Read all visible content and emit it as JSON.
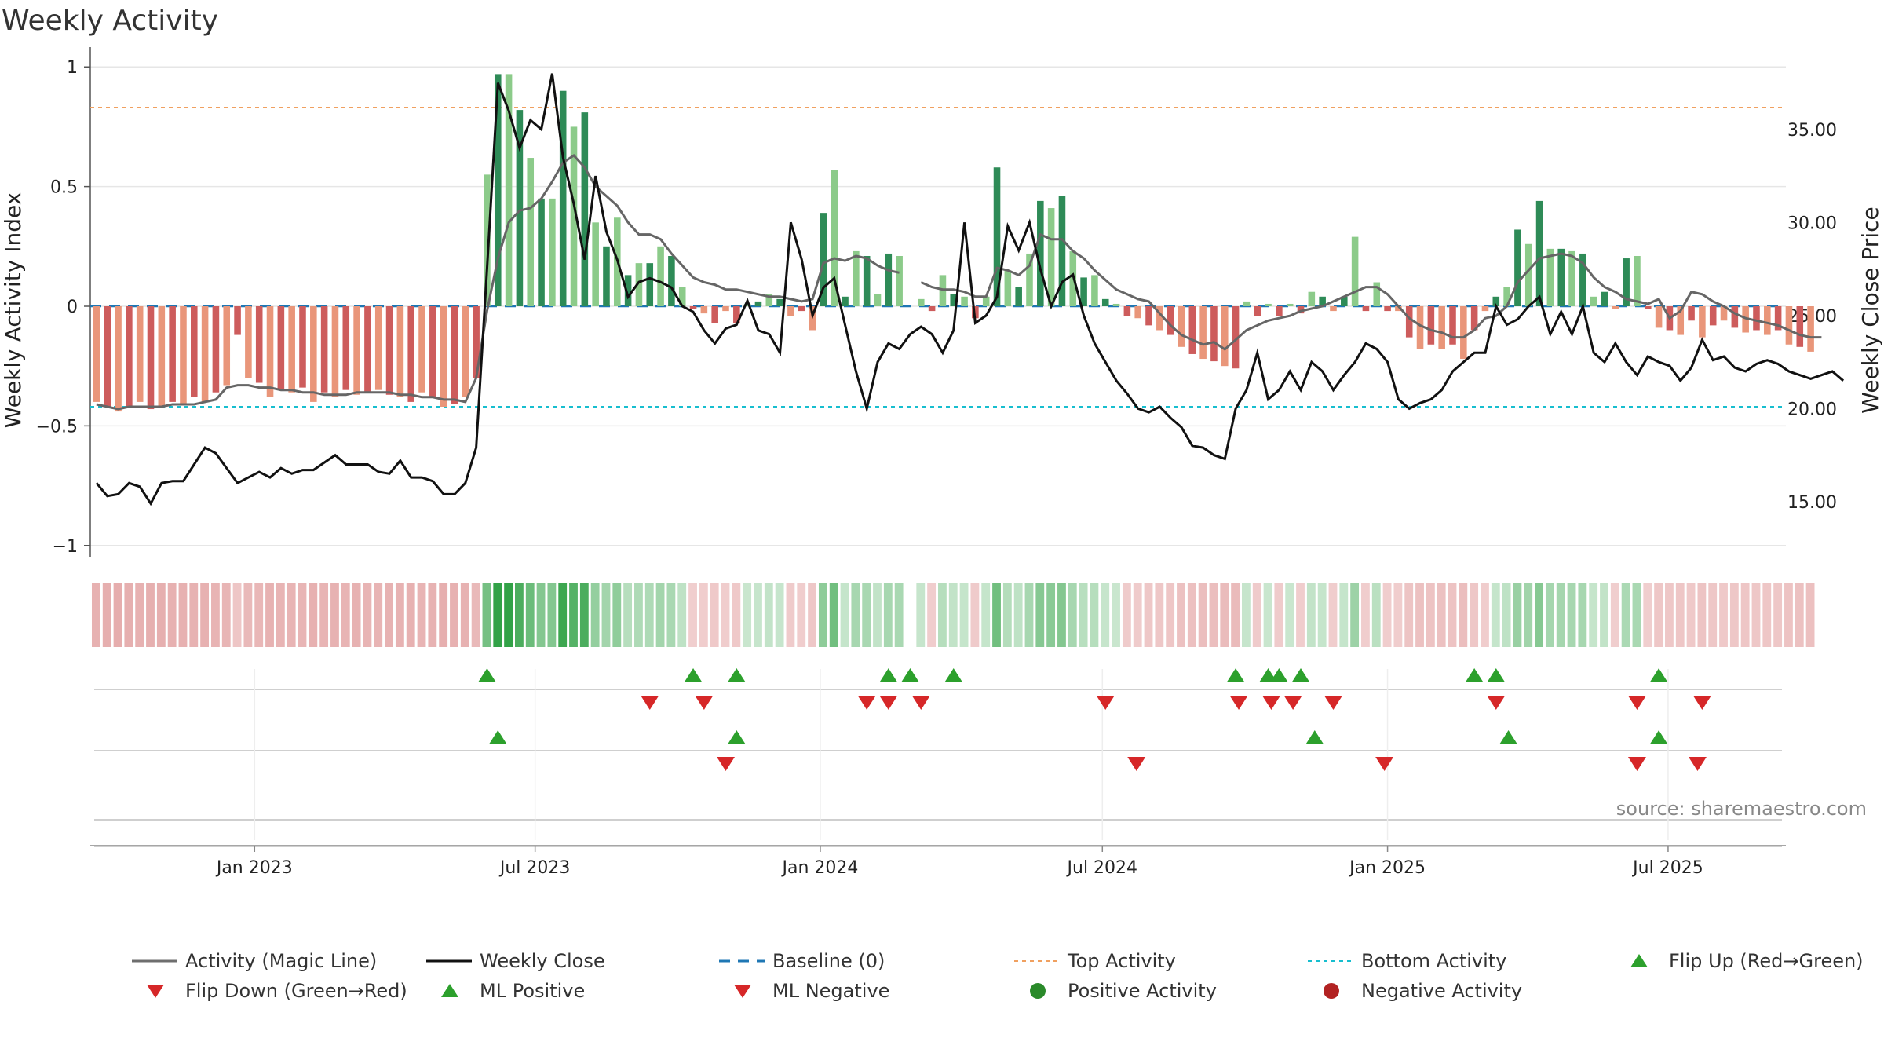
{
  "chart_data": {
    "type": "bar",
    "title": "Weekly Activity",
    "ylabel": "Weekly Activity Index",
    "y2label": "Weekly Close Price",
    "ylim": [
      -1.05,
      1.05
    ],
    "y2lim": [
      12.0,
      39.0
    ],
    "yticks": [
      "1",
      "0.5",
      "0",
      "−0.5",
      "−1"
    ],
    "yticks_values": [
      1,
      0.5,
      0,
      -0.5,
      -1
    ],
    "y2ticks": [
      "35.00",
      "30.00",
      "25.00",
      "20.00",
      "15.00"
    ],
    "y2ticks_values": [
      35,
      30,
      25,
      20,
      15
    ],
    "xlim": [
      "2022-09-17",
      "2025-09-15"
    ],
    "xticks": [
      "Jan 2023",
      "Jul 2023",
      "Jan 2024",
      "Jul 2024",
      "Jan 2025",
      "Jul 2025"
    ],
    "xticks_dates": [
      "2023-01-01",
      "2023-07-01",
      "2024-01-01",
      "2024-07-01",
      "2025-01-01",
      "2025-07-01"
    ],
    "week_start": "2022-09-21",
    "colors": {
      "pos_strong": "#2e8b57",
      "pos_weak": "#8ccb8a",
      "neg_strong": "#cd5c5c",
      "neg_weak": "#e9967a",
      "magic_line": "#666666",
      "close_line": "#111111",
      "baseline": "#1f77b4",
      "top_activity": "#f0a060",
      "bottom_activity": "#17becf",
      "flip_up": "#2ca02c",
      "flip_down": "#d62728"
    },
    "top_activity": 0.83,
    "bottom_activity": -0.42,
    "activity": [
      -0.4,
      -0.42,
      -0.44,
      -0.42,
      -0.4,
      -0.43,
      -0.42,
      -0.4,
      -0.41,
      -0.38,
      -0.4,
      -0.36,
      -0.33,
      -0.12,
      -0.3,
      -0.32,
      -0.38,
      -0.35,
      -0.36,
      -0.34,
      -0.4,
      -0.36,
      -0.38,
      -0.35,
      -0.37,
      -0.36,
      -0.35,
      -0.37,
      -0.38,
      -0.4,
      -0.36,
      -0.38,
      -0.42,
      -0.41,
      -0.38,
      -0.3,
      0.55,
      0.97,
      0.97,
      0.82,
      0.62,
      0.45,
      0.45,
      0.9,
      0.75,
      0.81,
      0.35,
      0.25,
      0.37,
      0.13,
      0.18,
      0.18,
      0.25,
      0.21,
      0.08,
      -0.01,
      -0.03,
      -0.07,
      -0.02,
      -0.07,
      0.01,
      0.02,
      0.05,
      0.03,
      -0.04,
      -0.02,
      -0.1,
      0.39,
      0.57,
      0.04,
      0.23,
      0.21,
      0.05,
      0.22,
      0.21,
      null,
      0.03,
      -0.02,
      0.13,
      0.05,
      0.04,
      -0.05,
      0.04,
      0.58,
      0.15,
      0.08,
      0.22,
      0.44,
      0.41,
      0.46,
      0.23,
      0.12,
      0.13,
      0.03,
      0.01,
      -0.04,
      -0.05,
      -0.08,
      -0.1,
      -0.12,
      -0.17,
      -0.2,
      -0.22,
      -0.23,
      -0.25,
      -0.26,
      0.02,
      -0.04,
      0.01,
      -0.04,
      0.01,
      -0.03,
      0.06,
      0.04,
      -0.02,
      0.04,
      0.29,
      -0.02,
      0.1,
      -0.02,
      -0.02,
      -0.13,
      -0.18,
      -0.16,
      -0.18,
      -0.16,
      -0.22,
      -0.1,
      -0.02,
      0.04,
      0.08,
      0.32,
      0.26,
      0.44,
      0.24,
      0.24,
      0.23,
      0.22,
      0.04,
      0.06,
      -0.01,
      0.2,
      0.21,
      -0.01,
      -0.09,
      -0.1,
      -0.12,
      -0.06,
      -0.13,
      -0.08,
      -0.06,
      -0.09,
      -0.11,
      -0.1,
      -0.12,
      -0.1,
      -0.16,
      -0.17,
      -0.19
    ],
    "magic_line": [
      -0.41,
      -0.42,
      -0.43,
      -0.42,
      -0.42,
      -0.42,
      -0.42,
      -0.41,
      -0.41,
      -0.41,
      -0.4,
      -0.39,
      -0.34,
      -0.33,
      -0.33,
      -0.34,
      -0.34,
      -0.35,
      -0.35,
      -0.36,
      -0.36,
      -0.37,
      -0.37,
      -0.37,
      -0.36,
      -0.36,
      -0.36,
      -0.36,
      -0.37,
      -0.37,
      -0.38,
      -0.38,
      -0.39,
      -0.39,
      -0.4,
      -0.3,
      -0.02,
      0.2,
      0.35,
      0.4,
      0.41,
      0.45,
      0.52,
      0.6,
      0.63,
      0.58,
      0.5,
      0.46,
      0.42,
      0.35,
      0.3,
      0.3,
      0.28,
      0.22,
      0.17,
      0.12,
      0.1,
      0.09,
      0.07,
      0.07,
      0.06,
      0.05,
      0.04,
      0.04,
      0.03,
      0.02,
      0.03,
      0.18,
      0.2,
      0.19,
      0.21,
      0.2,
      0.17,
      0.15,
      0.14,
      null,
      0.1,
      0.08,
      0.07,
      0.07,
      0.06,
      0.04,
      0.04,
      0.16,
      0.15,
      0.13,
      0.17,
      0.3,
      0.28,
      0.28,
      0.23,
      0.2,
      0.15,
      0.11,
      0.07,
      0.05,
      0.03,
      0.02,
      -0.03,
      -0.08,
      -0.12,
      -0.14,
      -0.16,
      -0.15,
      -0.18,
      -0.14,
      -0.1,
      -0.08,
      -0.06,
      -0.05,
      -0.04,
      -0.02,
      -0.01,
      0.0,
      0.02,
      0.04,
      0.06,
      0.08,
      0.08,
      0.05,
      0.0,
      -0.05,
      -0.08,
      -0.1,
      -0.11,
      -0.13,
      -0.13,
      -0.1,
      -0.05,
      -0.04,
      0.0,
      0.1,
      0.15,
      0.2,
      0.21,
      0.22,
      0.21,
      0.18,
      0.12,
      0.08,
      0.06,
      0.03,
      0.02,
      0.01,
      0.03,
      -0.05,
      -0.02,
      0.06,
      0.05,
      0.02,
      0.0,
      -0.03,
      -0.05,
      -0.06,
      -0.07,
      -0.08,
      -0.1,
      -0.12,
      -0.13,
      -0.13
    ],
    "close": [
      16.0,
      15.3,
      15.4,
      16.0,
      15.8,
      14.9,
      16.0,
      16.1,
      16.1,
      17.0,
      17.9,
      17.6,
      16.8,
      16.0,
      16.3,
      16.6,
      16.3,
      16.8,
      16.5,
      16.7,
      16.7,
      17.1,
      17.5,
      17.0,
      17.0,
      17.0,
      16.6,
      16.5,
      17.2,
      16.3,
      16.3,
      16.1,
      15.4,
      15.4,
      16.0,
      17.9,
      27.5,
      37.5,
      36.0,
      34.0,
      35.5,
      35.0,
      38.0,
      33.5,
      31.0,
      28.0,
      32.5,
      29.5,
      28.0,
      26.0,
      26.8,
      27.0,
      26.8,
      26.5,
      25.5,
      25.2,
      24.2,
      23.5,
      24.3,
      24.5,
      25.8,
      24.2,
      24.0,
      23.0,
      30.0,
      28.0,
      25.0,
      26.5,
      27.0,
      24.5,
      22.0,
      20.0,
      22.5,
      23.5,
      23.2,
      24.0,
      24.4,
      24.0,
      23.0,
      24.2,
      30.0,
      24.6,
      25.0,
      26.0,
      29.8,
      28.5,
      30.0,
      27.5,
      25.5,
      26.8,
      27.2,
      25.0,
      23.5,
      22.5,
      21.5,
      20.8,
      20.0,
      19.8,
      20.1,
      19.5,
      19.0,
      18.0,
      17.9,
      17.5,
      17.3,
      20.0,
      21.0,
      23.0,
      20.5,
      21.0,
      22.0,
      21.0,
      22.5,
      22.0,
      21.0,
      21.8,
      22.5,
      23.5,
      23.2,
      22.5,
      20.5,
      20.0,
      20.3,
      20.5,
      21.0,
      22.0,
      22.5,
      23.0,
      23.0,
      25.5,
      24.5,
      24.8,
      25.5,
      26.0,
      24.0,
      25.2,
      24.0,
      25.5,
      23.0,
      22.5,
      23.5,
      22.5,
      21.8,
      22.8,
      22.5,
      22.3,
      21.5,
      22.2,
      23.7,
      22.6,
      22.8,
      22.2,
      22.0,
      22.4,
      22.6,
      22.4,
      22.0,
      21.8,
      21.6,
      21.8,
      22.0,
      21.5
    ],
    "heat_gaps": [
      75
    ],
    "flip_up": [
      "2023-05-31",
      "2023-10-11",
      "2023-11-08",
      "2024-02-14",
      "2024-02-28",
      "2024-03-27",
      "2024-09-25",
      "2024-10-16",
      "2024-10-23",
      "2024-11-06",
      "2025-02-26",
      "2025-03-12",
      "2025-06-25"
    ],
    "flip_down": [
      "2023-09-13",
      "2023-10-18",
      "2024-01-31",
      "2024-02-14",
      "2024-03-06",
      "2024-07-03",
      "2024-09-27",
      "2024-10-18",
      "2024-11-01",
      "2024-11-27",
      "2025-03-12",
      "2025-06-11",
      "2025-07-23"
    ],
    "ml_positive": [
      "2023-06-07",
      "2023-11-08",
      "2024-11-15",
      "2025-03-20",
      "2025-06-25"
    ],
    "ml_negative": [
      "2023-11-01",
      "2024-07-23",
      "2024-12-30",
      "2025-06-11",
      "2025-07-20"
    ],
    "legend": [
      {
        "label": "Activity (Magic Line)",
        "symbol": "line",
        "color": "#6e6e6e"
      },
      {
        "label": "Weekly Close",
        "symbol": "line",
        "color": "#111111"
      },
      {
        "label": "Baseline (0)",
        "symbol": "dash",
        "color": "#1f77b4"
      },
      {
        "label": "Top Activity",
        "symbol": "dot",
        "color": "#f0a060"
      },
      {
        "label": "Bottom Activity",
        "symbol": "dot",
        "color": "#17becf"
      },
      {
        "label": "Flip Up (Red→Green)",
        "symbol": "tri-up",
        "color": "#2ca02c"
      },
      {
        "label": "Flip Down (Green→Red)",
        "symbol": "tri-down",
        "color": "#d62728"
      },
      {
        "label": "ML Positive",
        "symbol": "tri-up",
        "color": "#2ca02c"
      },
      {
        "label": "ML Negative",
        "symbol": "tri-down",
        "color": "#d62728"
      },
      {
        "label": "Positive Activity",
        "symbol": "circle",
        "color": "#2a8a2a"
      },
      {
        "label": "Negative Activity",
        "symbol": "circle",
        "color": "#b22222"
      }
    ],
    "source": "source: sharemaestro.com"
  }
}
